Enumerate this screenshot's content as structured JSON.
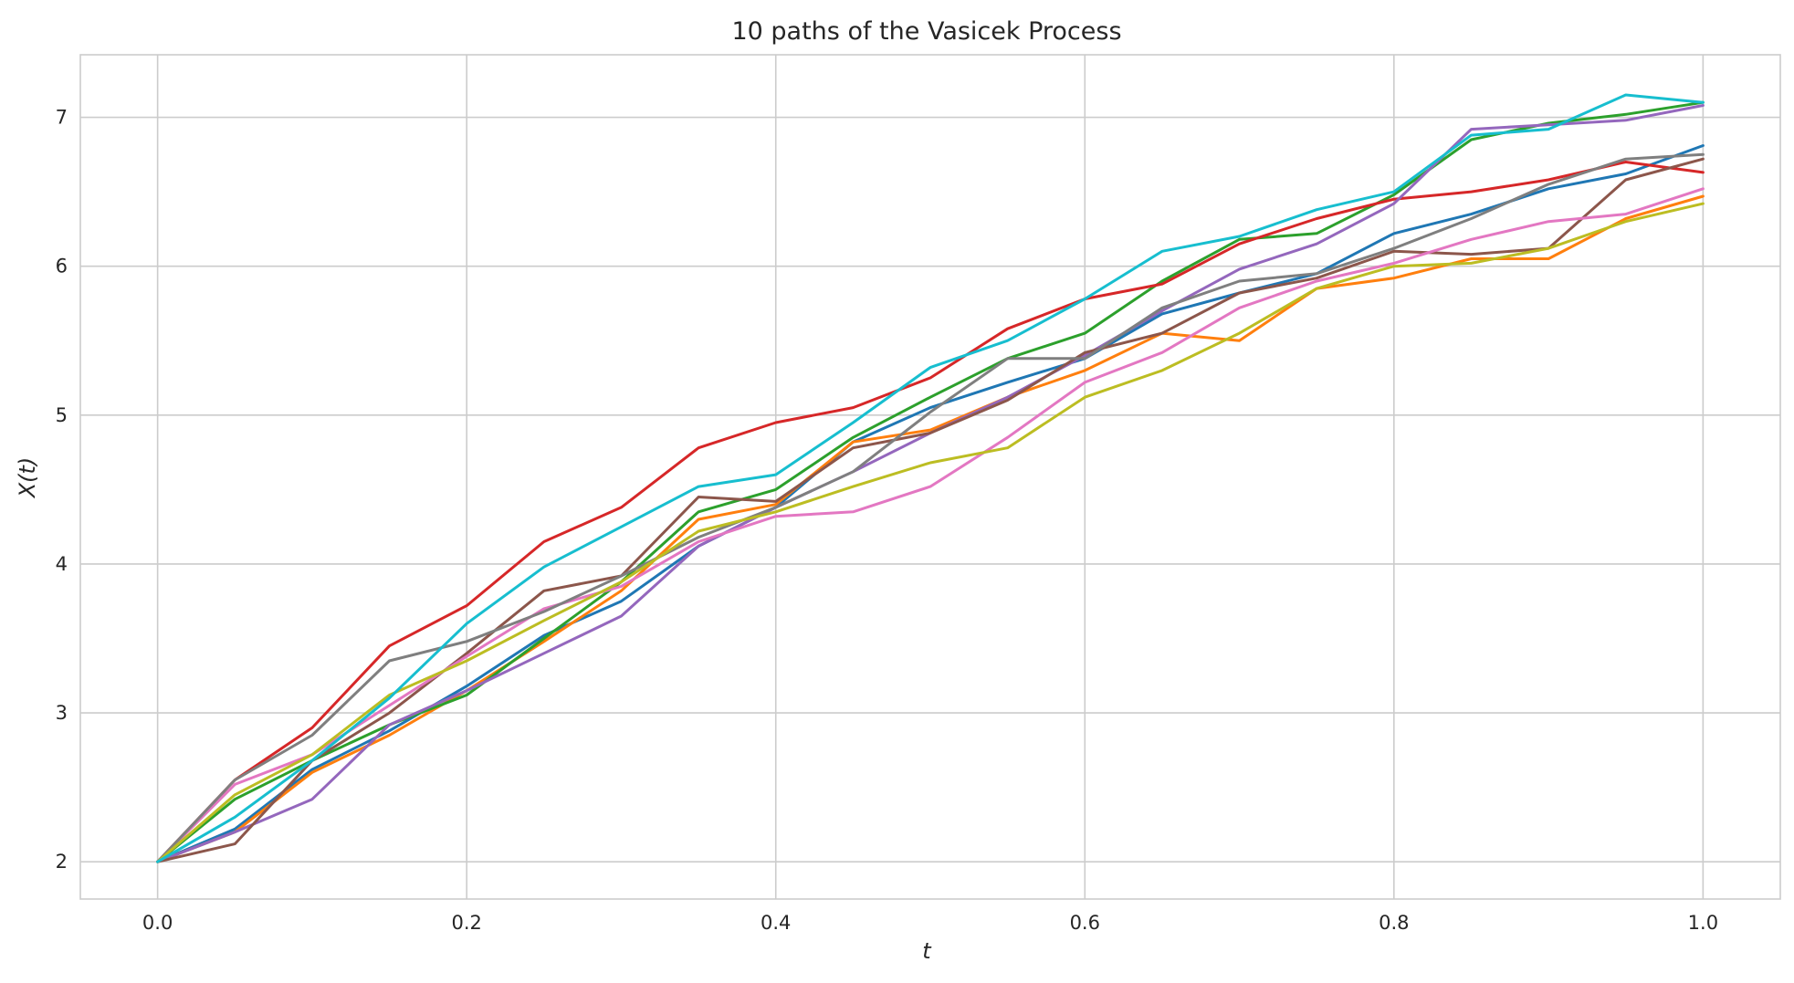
{
  "chart_data": {
    "type": "line",
    "title": "10 paths of the Vasicek Process",
    "xlabel": "t",
    "ylabel": "X(t)",
    "xlim": [
      -0.05,
      1.05
    ],
    "ylim": [
      1.75,
      7.42
    ],
    "x_ticks": [
      0.0,
      0.2,
      0.4,
      0.6,
      0.8,
      1.0
    ],
    "x_tick_labels": [
      "0.0",
      "0.2",
      "0.4",
      "0.6",
      "0.8",
      "1.0"
    ],
    "y_ticks": [
      2,
      3,
      4,
      5,
      6,
      7
    ],
    "y_tick_labels": [
      "2",
      "3",
      "4",
      "5",
      "6",
      "7"
    ],
    "grid": true,
    "x": [
      0.0,
      0.05,
      0.1,
      0.15,
      0.2,
      0.25,
      0.3,
      0.35,
      0.4,
      0.45,
      0.5,
      0.55,
      0.6,
      0.65,
      0.7,
      0.75,
      0.8,
      0.85,
      0.9,
      0.95,
      1.0
    ],
    "series": [
      {
        "color": "#1f77b4",
        "values": [
          2.0,
          2.22,
          2.62,
          2.88,
          3.18,
          3.52,
          3.75,
          4.12,
          4.38,
          4.82,
          5.05,
          5.22,
          5.38,
          5.68,
          5.82,
          5.95,
          6.22,
          6.35,
          6.52,
          6.62,
          6.81
        ]
      },
      {
        "color": "#ff7f0e",
        "values": [
          2.0,
          2.2,
          2.6,
          2.85,
          3.15,
          3.48,
          3.82,
          4.3,
          4.4,
          4.82,
          4.9,
          5.12,
          5.3,
          5.55,
          5.5,
          5.85,
          5.92,
          6.05,
          6.05,
          6.32,
          6.47
        ]
      },
      {
        "color": "#2ca02c",
        "values": [
          2.0,
          2.42,
          2.68,
          2.92,
          3.12,
          3.5,
          3.88,
          4.35,
          4.5,
          4.85,
          5.12,
          5.38,
          5.55,
          5.9,
          6.18,
          6.22,
          6.48,
          6.85,
          6.96,
          7.02,
          7.1
        ]
      },
      {
        "color": "#d62728",
        "values": [
          2.0,
          2.55,
          2.9,
          3.45,
          3.72,
          4.15,
          4.38,
          4.78,
          4.95,
          5.05,
          5.25,
          5.58,
          5.78,
          5.88,
          6.15,
          6.32,
          6.45,
          6.5,
          6.58,
          6.7,
          6.63
        ]
      },
      {
        "color": "#9467bd",
        "values": [
          2.0,
          2.2,
          2.42,
          2.92,
          3.15,
          3.4,
          3.65,
          4.12,
          4.38,
          4.62,
          4.88,
          5.12,
          5.4,
          5.7,
          5.98,
          6.15,
          6.42,
          6.92,
          6.95,
          6.98,
          7.08
        ]
      },
      {
        "color": "#8c564b",
        "values": [
          2.0,
          2.12,
          2.68,
          3.0,
          3.4,
          3.82,
          3.92,
          4.45,
          4.42,
          4.78,
          4.88,
          5.1,
          5.42,
          5.55,
          5.82,
          5.92,
          6.1,
          6.08,
          6.12,
          6.58,
          6.72
        ]
      },
      {
        "color": "#e377c2",
        "values": [
          2.0,
          2.52,
          2.72,
          3.05,
          3.38,
          3.7,
          3.85,
          4.15,
          4.32,
          4.35,
          4.52,
          4.85,
          5.22,
          5.42,
          5.72,
          5.9,
          6.02,
          6.18,
          6.3,
          6.35,
          6.52
        ]
      },
      {
        "color": "#7f7f7f",
        "values": [
          2.0,
          2.55,
          2.85,
          3.35,
          3.48,
          3.68,
          3.92,
          4.18,
          4.38,
          4.62,
          5.02,
          5.38,
          5.38,
          5.72,
          5.9,
          5.95,
          6.12,
          6.32,
          6.55,
          6.72,
          6.75
        ]
      },
      {
        "color": "#bcbd22",
        "values": [
          2.0,
          2.45,
          2.72,
          3.12,
          3.35,
          3.62,
          3.88,
          4.22,
          4.35,
          4.52,
          4.68,
          4.78,
          5.12,
          5.3,
          5.55,
          5.85,
          6.0,
          6.02,
          6.12,
          6.3,
          6.42
        ]
      },
      {
        "color": "#17becf",
        "values": [
          2.0,
          2.3,
          2.68,
          3.1,
          3.6,
          3.98,
          4.25,
          4.52,
          4.6,
          4.95,
          5.32,
          5.5,
          5.78,
          6.1,
          6.2,
          6.38,
          6.5,
          6.88,
          6.92,
          7.15,
          7.1
        ]
      }
    ]
  }
}
